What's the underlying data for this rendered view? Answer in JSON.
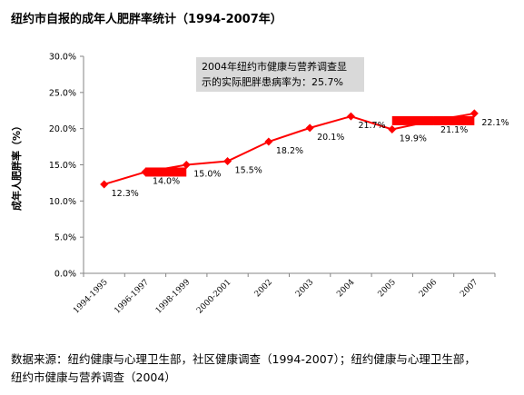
{
  "title": "纽约市自报的成年人肥胖率统计（1994-2007年）",
  "source_line1": "数据来源：纽约健康与心理卫生部，社区健康调查（1994-2007）；纽约健康与心理卫生部，",
  "source_line2": "纽约市健康与营养调查（2004）",
  "callout_line1": "2004年纽约市健康与营养调查显",
  "callout_line2": "示的实际肥胖患病率为：25.7%",
  "colors": {
    "series": "#ff0000",
    "axis": "#868686",
    "callout_bg": "#d9d9d9"
  },
  "chart_data": {
    "type": "line",
    "title": "纽约市自报的成年人肥胖率统计（1994-2007年）",
    "ylabel": "成年人肥胖率（%）",
    "xlabel": "",
    "ylim": [
      0,
      30
    ],
    "yticks": [
      "0.0%",
      "5.0%",
      "10.0%",
      "15.0%",
      "20.0%",
      "25.0%",
      "30.0%"
    ],
    "grid": false,
    "legend": "none",
    "categories": [
      "1994-1995",
      "1996-1997",
      "1998-1999",
      "2000-2001",
      "2002",
      "2003",
      "2004",
      "2005",
      "2006",
      "2007"
    ],
    "series": [
      {
        "values": [
          12.3,
          14.0,
          15.0,
          15.5,
          18.2,
          20.1,
          21.7,
          19.9,
          21.1,
          22.1
        ],
        "labels": [
          "12.3%",
          "14.0%",
          "15.0%",
          "15.5%",
          "18.2%",
          "20.1%",
          "21.7%",
          "19.9%",
          "21.1%",
          "22.1%"
        ]
      }
    ],
    "bands": [
      {
        "from": "1996-1997",
        "to": "1998-1999",
        "value": 14.0
      },
      {
        "from": "2005",
        "to": "2006",
        "value": 21.1
      },
      {
        "from": "2006",
        "to": "2007",
        "value": 21.1
      }
    ]
  }
}
